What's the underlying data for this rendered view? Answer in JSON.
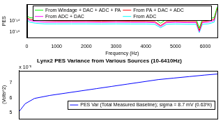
{
  "chart_data": [
    {
      "type": "line",
      "log": "y",
      "grid": false,
      "legend": "upper center",
      "y_label": "PES",
      "x_label": "Frequency (Hz)",
      "xlim": [
        0,
        6410
      ],
      "xticks": [
        0,
        1000,
        2000,
        3000,
        4000,
        5000,
        6000
      ],
      "ylim": [
        1e-17,
        1e-11
      ],
      "yticks": [
        {
          "value": 1e-16,
          "label": "10⁻¹⁶"
        },
        {
          "value": 1e-14,
          "label": "10⁻¹⁴"
        }
      ],
      "x": [
        0,
        100,
        300,
        600,
        1000,
        1500,
        2000,
        2500,
        3000,
        3500,
        4000,
        4300,
        4500,
        4700,
        5000,
        5400,
        5700,
        5800,
        5900,
        6100,
        6300,
        6400
      ],
      "series": [
        {
          "name": "From Windage + DAC + ADC + PA",
          "color": "#00ff00",
          "values": [
            8e-14,
            4e-14,
            3e-14,
            2.5e-14,
            2.5e-14,
            2.4e-14,
            2.5e-14,
            2.3e-14,
            2.4e-14,
            2.2e-14,
            2.3e-14,
            2.2e-14,
            4e-15,
            2e-14,
            2.2e-14,
            2e-14,
            2e-14,
            5e-16,
            2e-14,
            2.5e-14,
            4e-14,
            3e-12
          ]
        },
        {
          "name": "From PA + DAC + ADC",
          "color": "#ff0000",
          "values": [
            4e-14,
            2e-14,
            1.3e-14,
            1.1e-14,
            1e-14,
            1e-14,
            1e-14,
            9e-15,
            1e-14,
            9e-15,
            9e-15,
            8e-15,
            1.5e-15,
            8e-15,
            9e-15,
            8e-15,
            8e-15,
            2e-16,
            8e-15,
            1e-14,
            2e-14,
            2e-12
          ]
        },
        {
          "name": "From ADC + DAC",
          "color": "#ff00ff",
          "values": [
            2.5e-14,
            1.2e-14,
            8e-15,
            6e-15,
            6e-15,
            6e-15,
            6e-15,
            5.5e-15,
            6e-15,
            5.5e-15,
            5.5e-15,
            5e-15,
            1e-15,
            5e-15,
            5.5e-15,
            5e-15,
            5e-15,
            1.2e-16,
            5e-15,
            6e-15,
            1.2e-14,
            1.5e-12
          ]
        },
        {
          "name": "From ADC",
          "color": "#00ffff",
          "values": [
            1.5e-14,
            6e-15,
            4e-15,
            3e-15,
            3e-15,
            3e-15,
            3e-15,
            2.8e-15,
            3e-15,
            2.8e-15,
            2.8e-15,
            2.5e-15,
            6e-16,
            2.5e-15,
            2.8e-15,
            2.5e-15,
            2.5e-15,
            8e-17,
            2.5e-15,
            3e-15,
            6e-15,
            1e-12
          ]
        }
      ]
    },
    {
      "type": "line",
      "grid": false,
      "legend": "lower right",
      "tick_labels": "y",
      "title": "Lynx2 PES Variance from Various Sources (10-6410Hz)",
      "y_label": "(Volts^2)",
      "y_multiplier_label": "x 10⁻⁵",
      "xlim": [
        0,
        6410
      ],
      "ylim": [
        4.6,
        7.8
      ],
      "yticks": [
        5,
        6,
        7
      ],
      "x": [
        10,
        200,
        500,
        1000,
        1500,
        2000,
        2500,
        3000,
        3500,
        4000,
        4500,
        5000,
        5500,
        6000,
        6410
      ],
      "series": [
        {
          "name": "PES Var (Total Measured Baseline); sigma = 8.7 mV (0.63%)",
          "color": "#0000ff",
          "values": [
            5.1,
            5.6,
            5.95,
            6.15,
            6.3,
            6.45,
            6.6,
            6.75,
            6.9,
            7.05,
            7.2,
            7.3,
            7.4,
            7.5,
            7.57
          ]
        }
      ]
    }
  ]
}
